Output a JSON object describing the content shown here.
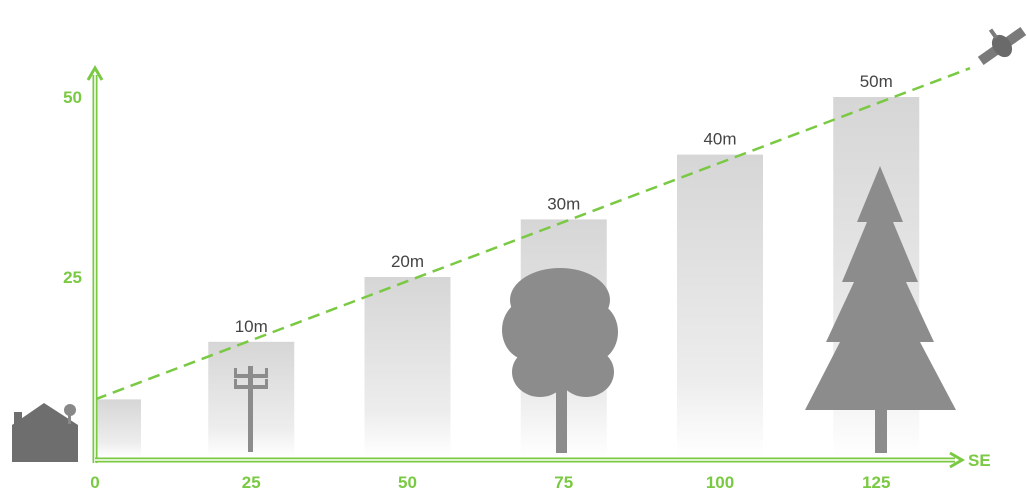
{
  "chart_data": {
    "type": "bar",
    "colors": {
      "axis": "#7ac943",
      "line": "#7ac943",
      "bar": "#d6d6d6",
      "silhouette": "#8c8c8c"
    },
    "x_axis": {
      "ticks": [
        0,
        25,
        50,
        75,
        100,
        125
      ],
      "direction_label": "SE"
    },
    "y_axis": {
      "ticks": [
        25,
        50
      ],
      "ylim": [
        0,
        52
      ]
    },
    "bars": [
      {
        "x": 0,
        "height": 8,
        "label": ""
      },
      {
        "x": 25,
        "height": 16,
        "label": "10m"
      },
      {
        "x": 50,
        "height": 25,
        "label": "20m"
      },
      {
        "x": 75,
        "height": 33,
        "label": "30m"
      },
      {
        "x": 100,
        "height": 42,
        "label": "40m"
      },
      {
        "x": 125,
        "height": 50,
        "label": "50m"
      }
    ],
    "sightline": {
      "start": [
        0,
        8
      ],
      "end": [
        140,
        54
      ]
    },
    "icons": {
      "origin": "house-with-dish-icon",
      "target": "satellite-icon",
      "obstacles": [
        "utility-pole-icon",
        "deciduous-tree-icon",
        "pine-tree-icon"
      ]
    }
  }
}
